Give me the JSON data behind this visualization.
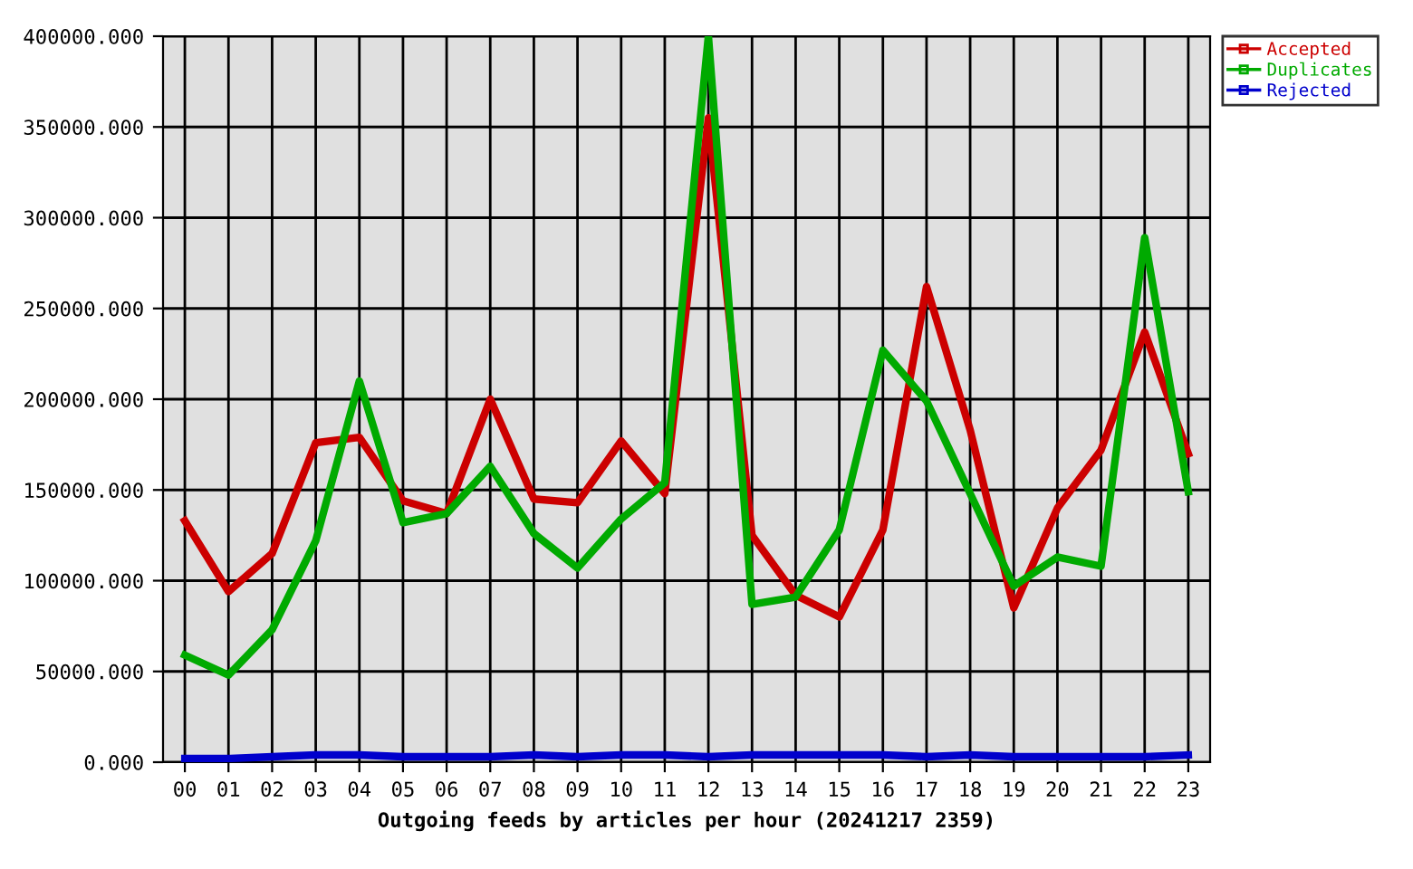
{
  "chart_data": {
    "type": "line",
    "xlabel": "Outgoing feeds by articles per hour (20241217 2359)",
    "categories": [
      "00",
      "01",
      "02",
      "03",
      "04",
      "05",
      "06",
      "07",
      "08",
      "09",
      "10",
      "11",
      "12",
      "13",
      "14",
      "15",
      "16",
      "17",
      "18",
      "19",
      "20",
      "21",
      "22",
      "23"
    ],
    "series": [
      {
        "name": "Accepted",
        "color": "#cc0000",
        "values": [
          133000,
          94000,
          115000,
          176000,
          179000,
          144000,
          137000,
          200000,
          145000,
          143000,
          177000,
          148000,
          355000,
          125000,
          92000,
          80000,
          128000,
          262000,
          183000,
          85000,
          140000,
          172000,
          237000,
          170000
        ]
      },
      {
        "name": "Duplicates",
        "color": "#00aa00",
        "values": [
          59000,
          48000,
          73000,
          122000,
          210000,
          132000,
          137000,
          163000,
          126000,
          107000,
          134000,
          154000,
          400000,
          87000,
          91000,
          128000,
          227000,
          199000,
          148000,
          97000,
          113000,
          108000,
          289000,
          149000
        ]
      },
      {
        "name": "Rejected",
        "color": "#0000cc",
        "values": [
          2000,
          2000,
          3000,
          4000,
          4000,
          3000,
          3000,
          3000,
          4000,
          3000,
          4000,
          4000,
          3000,
          4000,
          4000,
          4000,
          4000,
          3000,
          4000,
          3000,
          3000,
          3000,
          3000,
          4000
        ]
      }
    ],
    "ylim": [
      0,
      400000
    ],
    "yticks": [
      {
        "value": 0,
        "label": "0.000"
      },
      {
        "value": 50000,
        "label": "50000.000"
      },
      {
        "value": 100000,
        "label": "100000.000"
      },
      {
        "value": 150000,
        "label": "150000.000"
      },
      {
        "value": 200000,
        "label": "200000.000"
      },
      {
        "value": 250000,
        "label": "250000.000"
      },
      {
        "value": 300000,
        "label": "300000.000"
      },
      {
        "value": 350000,
        "label": "350000.000"
      },
      {
        "value": 400000,
        "label": "400000.000"
      }
    ],
    "grid": true,
    "legend": "top right",
    "marker": "none",
    "line_style": "solid"
  }
}
